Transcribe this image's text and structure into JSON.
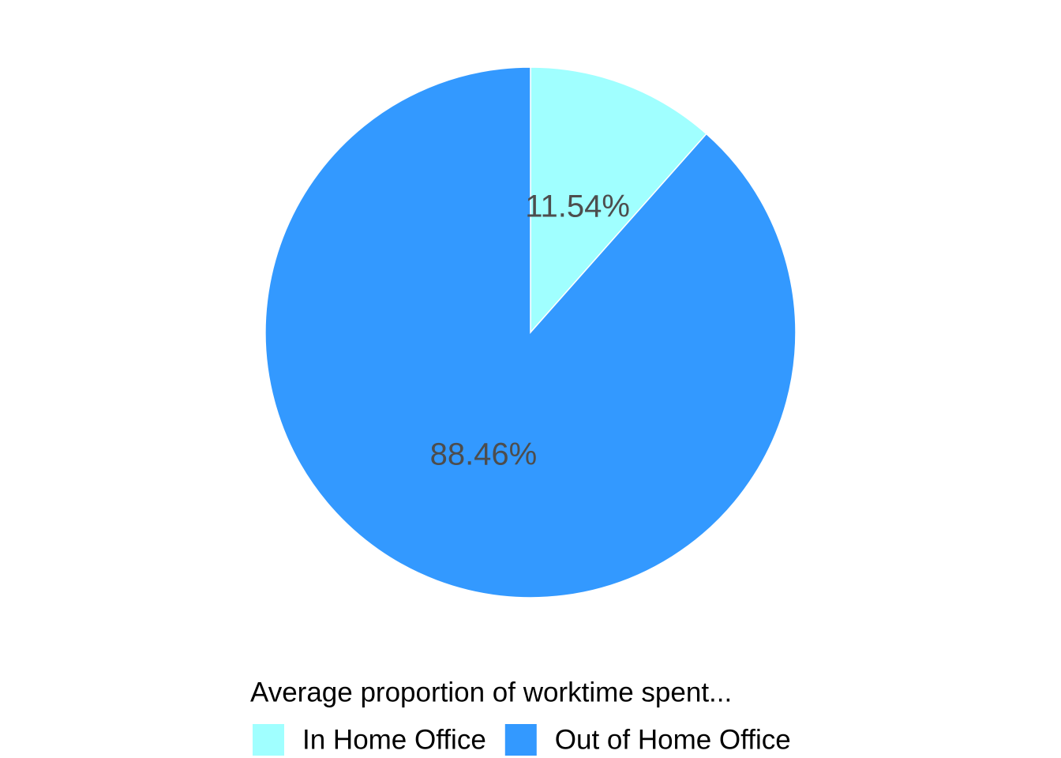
{
  "chart_data": {
    "type": "pie",
    "categories": [
      "In Home Office",
      "Out of Home Office"
    ],
    "values": [
      11.54,
      88.46
    ],
    "value_labels": [
      "11.54%",
      "88.46%"
    ],
    "colors": [
      "#a0ffff",
      "#3399ff"
    ],
    "legend_title": "Average proportion of worktime spent...",
    "legend_position": "bottom"
  }
}
